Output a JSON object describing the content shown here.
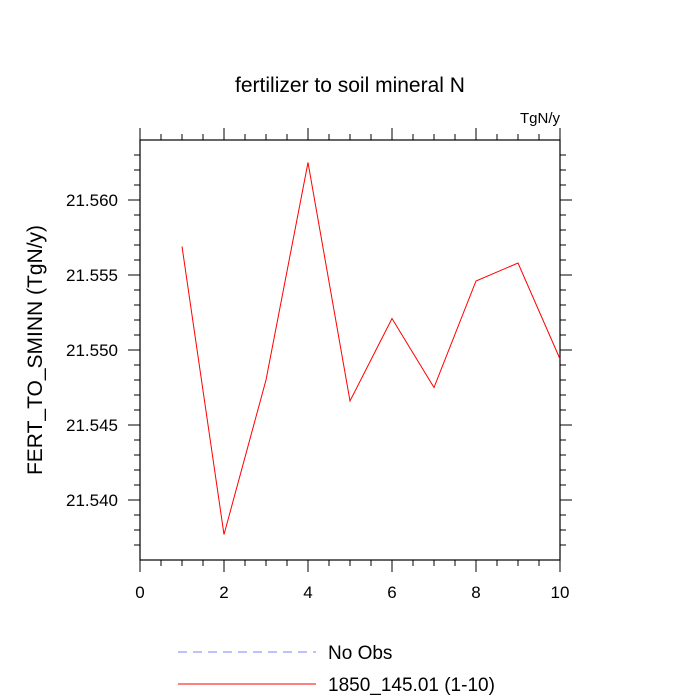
{
  "chart_data": {
    "type": "line",
    "title": "fertilizer to soil mineral N",
    "units_label": "TgN/y",
    "ylabel": "FERT_TO_SMINN  (TgN/y)",
    "xlabel": "",
    "xlim": [
      0,
      10
    ],
    "ylim": [
      21.536,
      21.564
    ],
    "x_ticks": [
      0,
      2,
      4,
      6,
      8,
      10
    ],
    "x_tick_labels": [
      "0",
      "2",
      "4",
      "6",
      "8",
      "10"
    ],
    "y_ticks": [
      21.54,
      21.545,
      21.55,
      21.555,
      21.56
    ],
    "y_tick_labels": [
      "21.540",
      "21.545",
      "21.550",
      "21.555",
      "21.560"
    ],
    "grid": false,
    "legend_position": "bottom",
    "series": [
      {
        "name": "No Obs",
        "color": "#8080ff",
        "style": "dashed",
        "x": [],
        "y": []
      },
      {
        "name": "1850_145.01 (1-10)",
        "color": "#ff0000",
        "style": "solid",
        "x": [
          1,
          2,
          3,
          4,
          5,
          6,
          7,
          8,
          9,
          10
        ],
        "y": [
          21.5569,
          21.5377,
          21.548,
          21.5625,
          21.5466,
          21.5521,
          21.5475,
          21.5546,
          21.5558,
          21.5494
        ]
      }
    ]
  }
}
